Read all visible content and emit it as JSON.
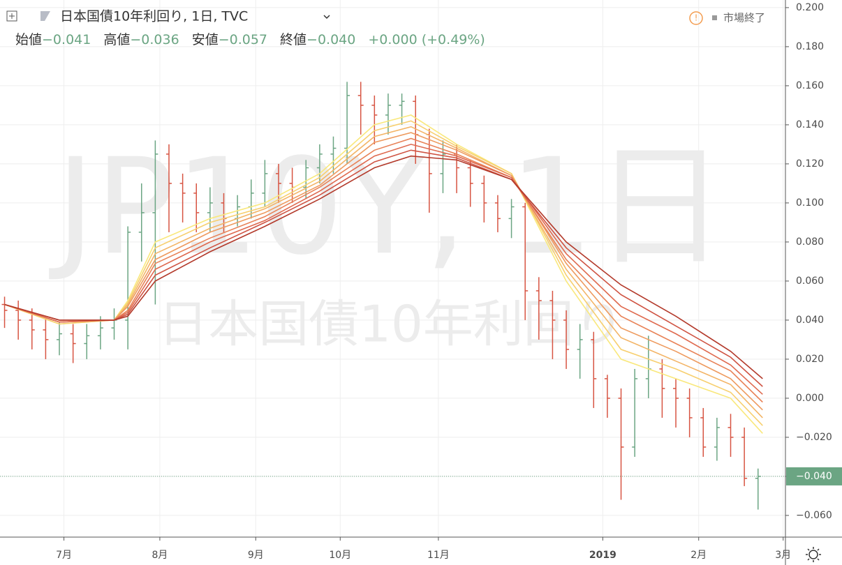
{
  "chart_data": {
    "type": "ohlc",
    "title": "日本国債10年利回り, 1日, TVC",
    "status": "市場終了",
    "watermark": "JP10Y, 1日",
    "watermark_sub": "日本国債10年利回り",
    "legend_items": [
      {
        "label": "始値",
        "value": "−0.041"
      },
      {
        "label": "高値",
        "value": "−0.036"
      },
      {
        "label": "安値",
        "value": "−0.057"
      },
      {
        "label": "終値",
        "value": "−0.040"
      }
    ],
    "change": "+0.000 (+0.49%)",
    "up_color": "#6ba583",
    "down_color": "#d75442",
    "grid": true,
    "x": [
      1,
      4,
      7,
      10,
      13,
      16,
      19,
      22,
      25,
      28,
      31,
      34,
      37,
      40,
      43,
      46,
      49,
      52,
      55,
      58,
      61,
      64,
      67,
      70,
      73,
      76,
      79,
      82,
      85,
      88,
      91,
      94,
      97,
      100,
      103,
      106,
      109,
      112,
      115,
      118,
      121,
      124,
      127,
      130,
      133,
      136,
      139,
      142,
      145,
      148,
      151,
      154,
      157,
      160,
      163,
      166
    ],
    "open": [
      0.048,
      0.045,
      0.04,
      0.035,
      0.03,
      0.033,
      0.028,
      0.032,
      0.036,
      0.04,
      0.085,
      0.095,
      0.125,
      0.11,
      0.105,
      0.095,
      0.1,
      0.092,
      0.098,
      0.105,
      0.115,
      0.11,
      0.108,
      0.118,
      0.125,
      0.128,
      0.155,
      0.15,
      0.145,
      0.15,
      0.152,
      0.135,
      0.115,
      0.125,
      0.118,
      0.11,
      0.1,
      0.092,
      0.098,
      0.055,
      0.05,
      0.04,
      0.025,
      0.03,
      0.01,
      0.0,
      -0.025,
      0.01,
      0.015,
      0.005,
      0.0,
      -0.01,
      -0.025,
      -0.015,
      -0.02,
      -0.041
    ],
    "high": [
      0.052,
      0.05,
      0.046,
      0.041,
      0.039,
      0.038,
      0.038,
      0.042,
      0.046,
      0.088,
      0.11,
      0.132,
      0.13,
      0.115,
      0.11,
      0.108,
      0.105,
      0.104,
      0.112,
      0.122,
      0.12,
      0.118,
      0.122,
      0.13,
      0.134,
      0.162,
      0.162,
      0.155,
      0.156,
      0.156,
      0.155,
      0.138,
      0.132,
      0.13,
      0.122,
      0.114,
      0.104,
      0.102,
      0.1,
      0.062,
      0.055,
      0.045,
      0.038,
      0.034,
      0.012,
      0.005,
      0.015,
      0.032,
      0.02,
      0.01,
      0.005,
      -0.005,
      -0.01,
      -0.008,
      -0.015,
      -0.036
    ],
    "low": [
      0.036,
      0.03,
      0.025,
      0.02,
      0.022,
      0.018,
      0.02,
      0.025,
      0.03,
      0.025,
      0.07,
      0.048,
      0.085,
      0.09,
      0.085,
      0.085,
      0.085,
      0.088,
      0.092,
      0.098,
      0.1,
      0.1,
      0.102,
      0.11,
      0.115,
      0.12,
      0.135,
      0.13,
      0.135,
      0.14,
      0.12,
      0.095,
      0.105,
      0.105,
      0.098,
      0.09,
      0.085,
      0.082,
      0.04,
      0.03,
      0.02,
      0.015,
      0.01,
      -0.005,
      -0.01,
      -0.052,
      -0.03,
      0.0,
      -0.01,
      -0.015,
      -0.02,
      -0.03,
      -0.032,
      -0.03,
      -0.045,
      -0.057
    ],
    "close": [
      0.045,
      0.04,
      0.035,
      0.03,
      0.033,
      0.028,
      0.032,
      0.036,
      0.04,
      0.085,
      0.095,
      0.125,
      0.11,
      0.105,
      0.095,
      0.1,
      0.092,
      0.098,
      0.105,
      0.115,
      0.11,
      0.108,
      0.118,
      0.125,
      0.128,
      0.155,
      0.15,
      0.145,
      0.15,
      0.152,
      0.135,
      0.115,
      0.125,
      0.118,
      0.11,
      0.1,
      0.092,
      0.098,
      0.055,
      0.05,
      0.04,
      0.025,
      0.03,
      0.01,
      0.0,
      -0.025,
      0.01,
      0.015,
      0.005,
      0.0,
      -0.01,
      -0.025,
      -0.015,
      -0.02,
      -0.041,
      -0.04
    ],
    "ma_x": [
      1,
      13,
      25,
      28,
      34,
      46,
      58,
      70,
      82,
      90,
      100,
      112,
      124,
      136,
      148,
      160,
      167
    ],
    "ma_lines": [
      {
        "color": "#f9e87c",
        "values": [
          0.048,
          0.038,
          0.04,
          0.05,
          0.08,
          0.092,
          0.1,
          0.115,
          0.14,
          0.145,
          0.13,
          0.115,
          0.06,
          0.02,
          0.01,
          0.0,
          -0.018
        ]
      },
      {
        "color": "#f7cf6e",
        "values": [
          0.048,
          0.038,
          0.04,
          0.049,
          0.077,
          0.09,
          0.098,
          0.113,
          0.137,
          0.142,
          0.129,
          0.115,
          0.063,
          0.025,
          0.015,
          0.003,
          -0.014
        ]
      },
      {
        "color": "#f3b466",
        "values": [
          0.048,
          0.039,
          0.04,
          0.048,
          0.074,
          0.087,
          0.097,
          0.111,
          0.134,
          0.139,
          0.128,
          0.114,
          0.066,
          0.031,
          0.019,
          0.007,
          -0.01
        ]
      },
      {
        "color": "#ee9a5e",
        "values": [
          0.048,
          0.039,
          0.04,
          0.047,
          0.071,
          0.085,
          0.095,
          0.109,
          0.131,
          0.136,
          0.127,
          0.114,
          0.069,
          0.036,
          0.024,
          0.01,
          -0.006
        ]
      },
      {
        "color": "#e88257",
        "values": [
          0.048,
          0.039,
          0.04,
          0.045,
          0.069,
          0.082,
          0.093,
          0.108,
          0.127,
          0.133,
          0.125,
          0.113,
          0.071,
          0.042,
          0.028,
          0.014,
          -0.002
        ]
      },
      {
        "color": "#df6a4f",
        "values": [
          0.048,
          0.039,
          0.04,
          0.044,
          0.066,
          0.08,
          0.091,
          0.106,
          0.124,
          0.13,
          0.124,
          0.113,
          0.074,
          0.047,
          0.033,
          0.017,
          0.002
        ]
      },
      {
        "color": "#cf5342",
        "values": [
          0.048,
          0.04,
          0.04,
          0.043,
          0.063,
          0.077,
          0.09,
          0.104,
          0.121,
          0.127,
          0.123,
          0.112,
          0.077,
          0.053,
          0.037,
          0.021,
          0.006
        ]
      },
      {
        "color": "#b33a2b",
        "values": [
          0.048,
          0.04,
          0.04,
          0.042,
          0.06,
          0.075,
          0.088,
          0.102,
          0.118,
          0.124,
          0.122,
          0.112,
          0.08,
          0.058,
          0.042,
          0.024,
          0.01
        ]
      }
    ],
    "xlim": [
      0,
      172
    ],
    "xticks": [
      {
        "value": 14,
        "label": "7月"
      },
      {
        "value": 35,
        "label": "8月"
      },
      {
        "value": 56,
        "label": "9月"
      },
      {
        "value": 74.5,
        "label": "10月"
      },
      {
        "value": 96,
        "label": "11月"
      },
      {
        "value": 132,
        "label": "2019"
      },
      {
        "value": 153,
        "label": "2月"
      },
      {
        "value": 171.5,
        "label": "3月"
      }
    ],
    "ylim": [
      -0.0711,
      0.2039
    ],
    "yticks": [
      {
        "value": 0.2,
        "label": "0.200"
      },
      {
        "value": 0.18,
        "label": "0.180"
      },
      {
        "value": 0.16,
        "label": "0.160"
      },
      {
        "value": 0.14,
        "label": "0.140"
      },
      {
        "value": 0.12,
        "label": "0.120"
      },
      {
        "value": 0.1,
        "label": "0.100"
      },
      {
        "value": 0.08,
        "label": "0.080"
      },
      {
        "value": 0.06,
        "label": "0.060"
      },
      {
        "value": 0.04,
        "label": "0.040"
      },
      {
        "value": 0.02,
        "label": "0.020"
      },
      {
        "value": 0,
        "label": "0.000"
      },
      {
        "value": -0.02,
        "label": "−0.020"
      },
      {
        "value": -0.04,
        "label": "−0.040"
      },
      {
        "value": -0.06,
        "label": "−0.060"
      }
    ],
    "last_price": {
      "value": -0.04,
      "label": "−0.040"
    }
  }
}
